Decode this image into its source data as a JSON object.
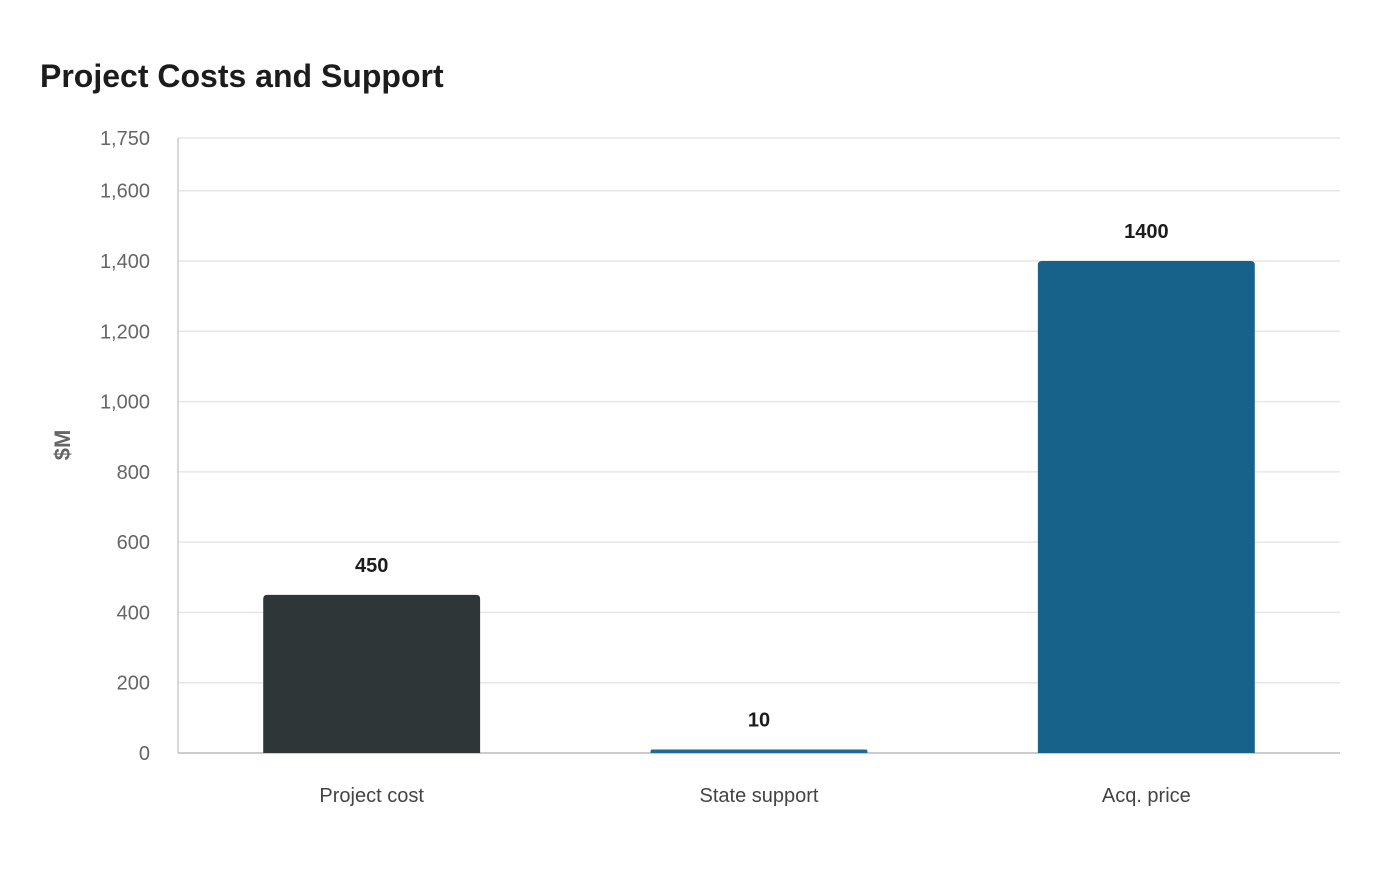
{
  "chart_data": {
    "type": "bar",
    "title": "Project Costs and Support",
    "xlabel": "",
    "ylabel": "$M",
    "categories": [
      "Project cost",
      "State support",
      "Acq. price"
    ],
    "values": [
      450,
      10,
      1400
    ],
    "data_labels": [
      "450",
      "10",
      "1400"
    ],
    "colors": [
      "#2e3638",
      "#1f6b97",
      "#17628a"
    ],
    "ylim": [
      0,
      1750
    ],
    "yticks": [
      0,
      200,
      400,
      600,
      800,
      1000,
      1200,
      1400,
      1600,
      1750
    ],
    "ytick_labels": [
      "0",
      "200",
      "400",
      "600",
      "800",
      "1,000",
      "1,200",
      "1,400",
      "1,600",
      "1,750"
    ],
    "grid": true,
    "legend": "none",
    "gridline_color": "#e6e6e6",
    "axis_color": "#cccccc"
  }
}
